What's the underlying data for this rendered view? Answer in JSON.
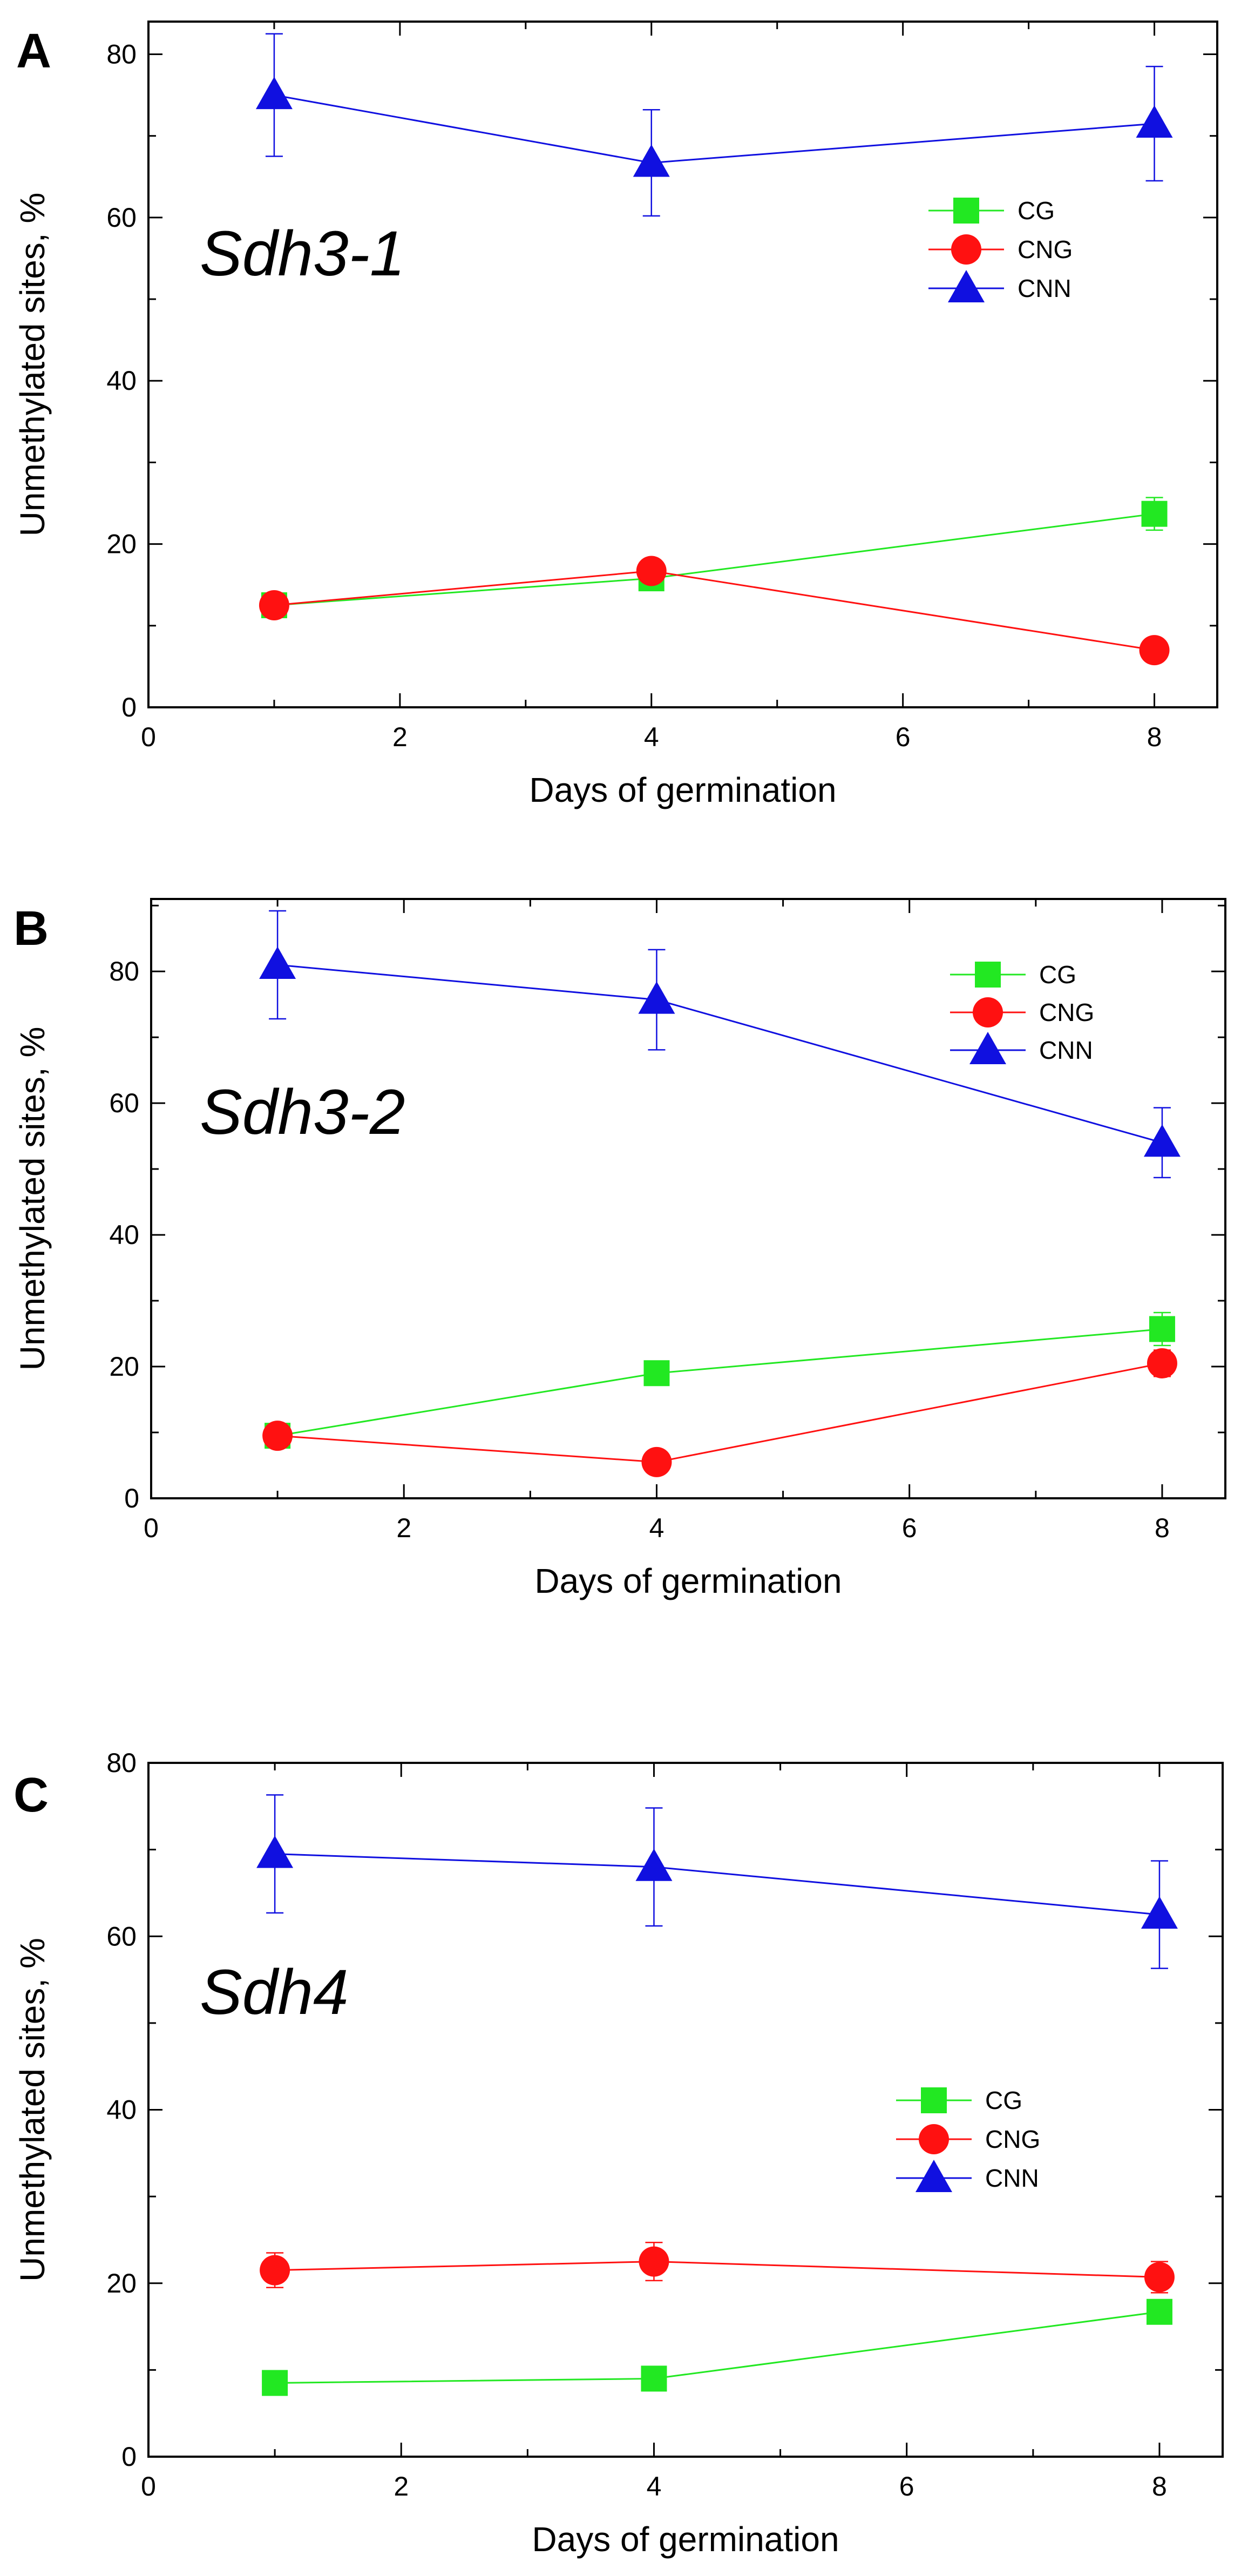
{
  "chart_data": [
    {
      "type": "line",
      "panel": "A",
      "gene": "Sdh3-1",
      "xlabel": "Days of germination",
      "ylabel": "Unmethylated sites, %",
      "xlim": [
        0,
        8.5
      ],
      "ylim": [
        0,
        84
      ],
      "xticks": [
        0,
        2,
        4,
        6,
        8
      ],
      "yticks": [
        0,
        20,
        40,
        60,
        80
      ],
      "x": [
        1,
        4,
        8
      ],
      "legend_position": "top-right",
      "series": [
        {
          "name": "CG",
          "color": "#22e822",
          "marker": "square",
          "values": [
            12.5,
            15.8,
            23.7
          ],
          "errors": [
            1.2,
            1.2,
            2.0
          ]
        },
        {
          "name": "CNG",
          "color": "#ff1111",
          "marker": "circle",
          "values": [
            12.5,
            16.7,
            7.0
          ],
          "errors": [
            0.8,
            1.0,
            0.6
          ]
        },
        {
          "name": "CNN",
          "color": "#1010e0",
          "marker": "triangle",
          "values": [
            75.0,
            66.7,
            71.5
          ],
          "errors": [
            7.5,
            6.5,
            7.0
          ]
        }
      ]
    },
    {
      "type": "line",
      "panel": "B",
      "gene": "Sdh3-2",
      "xlabel": "Days of germination",
      "ylabel": "Unmethylated sites, %",
      "xlim": [
        0,
        8.5
      ],
      "ylim": [
        0,
        91
      ],
      "xticks": [
        0,
        2,
        4,
        6,
        8
      ],
      "yticks": [
        0,
        20,
        40,
        60,
        80
      ],
      "x": [
        1,
        4,
        8
      ],
      "legend_position": "top-right",
      "series": [
        {
          "name": "CG",
          "color": "#22e822",
          "marker": "square",
          "values": [
            9.5,
            19.0,
            25.7
          ],
          "errors": [
            1.0,
            1.2,
            2.5
          ]
        },
        {
          "name": "CNG",
          "color": "#ff1111",
          "marker": "circle",
          "values": [
            9.5,
            5.5,
            20.5
          ],
          "errors": [
            0.8,
            0.8,
            2.0
          ]
        },
        {
          "name": "CNN",
          "color": "#1010e0",
          "marker": "triangle",
          "values": [
            81.0,
            75.7,
            54.0
          ],
          "errors": [
            8.2,
            7.6,
            5.3
          ]
        }
      ]
    },
    {
      "type": "line",
      "panel": "C",
      "gene": "Sdh4",
      "xlabel": "Days of germination",
      "ylabel": "Unmethylated sites, %",
      "xlim": [
        0,
        8.5
      ],
      "ylim": [
        0,
        80
      ],
      "xticks": [
        0,
        2,
        4,
        6,
        8
      ],
      "yticks": [
        0,
        20,
        40,
        60,
        80
      ],
      "x": [
        1,
        4,
        8
      ],
      "legend_position": "center-right",
      "series": [
        {
          "name": "CG",
          "color": "#22e822",
          "marker": "square",
          "values": [
            8.5,
            9.0,
            16.7
          ],
          "errors": [
            0.6,
            0.6,
            1.0
          ]
        },
        {
          "name": "CNG",
          "color": "#ff1111",
          "marker": "circle",
          "values": [
            21.5,
            22.5,
            20.7
          ],
          "errors": [
            2.0,
            2.2,
            1.8
          ]
        },
        {
          "name": "CNN",
          "color": "#1010e0",
          "marker": "triangle",
          "values": [
            69.5,
            68.0,
            62.5
          ],
          "errors": [
            6.8,
            6.8,
            6.2
          ]
        }
      ]
    }
  ]
}
